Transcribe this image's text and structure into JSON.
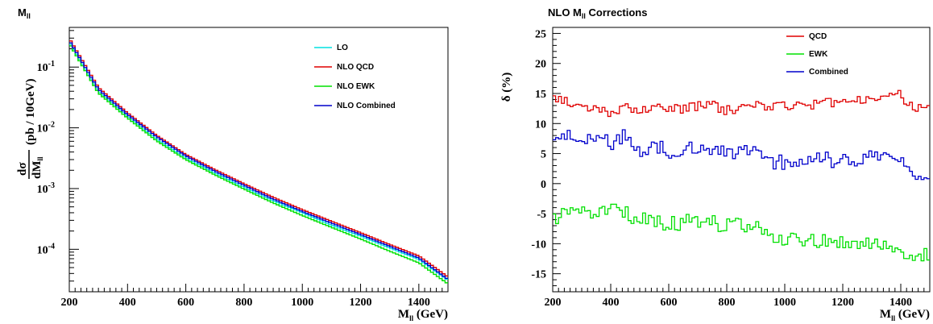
{
  "chart_data": [
    {
      "type": "line",
      "title": "M_ll",
      "title_main": "M",
      "title_sub": "ll",
      "xlabel_main": "M",
      "xlabel_sub": "ll",
      "xlabel_unit": " (GeV)",
      "ylabel_num": "dσ",
      "ylabel_den": "dM",
      "ylabel_den_sub": "ll",
      "ylabel_unit": "(pb / 10GeV)",
      "xlim": [
        200,
        1500
      ],
      "ylim": [
        2e-05,
        0.45
      ],
      "yscale": "log",
      "xticks": [
        "200",
        "400",
        "600",
        "800",
        "1000",
        "1200",
        "1400"
      ],
      "yticks": [
        {
          "value": 0.1,
          "mant": "10",
          "exp": "-1"
        },
        {
          "value": 0.01,
          "mant": "10",
          "exp": "-2"
        },
        {
          "value": 0.001,
          "mant": "10",
          "exp": "-3"
        },
        {
          "value": 0.0001,
          "mant": "10",
          "exp": "-4"
        }
      ],
      "legend_position": "top-right",
      "x": [
        200,
        300,
        400,
        500,
        600,
        700,
        800,
        900,
        1000,
        1100,
        1200,
        1300,
        1400,
        1500
      ],
      "series": [
        {
          "name": "LO",
          "color": "#00e0e0",
          "values": [
            0.26,
            0.04,
            0.0155,
            0.0065,
            0.0032,
            0.0018,
            0.00105,
            0.00063,
            0.0004,
            0.00025,
            0.000165,
            0.000105,
            6.8e-05,
            3.1e-05
          ]
        },
        {
          "name": "NLO QCD",
          "color": "#e00000",
          "values": [
            0.295,
            0.046,
            0.0176,
            0.0075,
            0.00365,
            0.00205,
            0.0012,
            0.00072,
            0.00045,
            0.00029,
            0.000188,
            0.00012,
            7.8e-05,
            3.5e-05
          ]
        },
        {
          "name": "NLO EWK",
          "color": "#00e000",
          "values": [
            0.245,
            0.0375,
            0.0145,
            0.0061,
            0.003,
            0.00168,
            0.00098,
            0.00058,
            0.00036,
            0.00023,
            0.000148,
            9.3e-05,
            6e-05,
            2.7e-05
          ]
        },
        {
          "name": "NLO Combined",
          "color": "#0000cc",
          "values": [
            0.275,
            0.043,
            0.0165,
            0.0071,
            0.00345,
            0.00193,
            0.00113,
            0.00067,
            0.00042,
            0.00027,
            0.000175,
            0.000112,
            7.2e-05,
            3.2e-05
          ]
        }
      ]
    },
    {
      "type": "line",
      "title_main": "NLO M",
      "title_sub": "ll",
      "title_rest": " Corrections",
      "xlabel_main": "M",
      "xlabel_sub": "ll",
      "xlabel_unit": " (GeV)",
      "ylabel": "δ (%)",
      "xlim": [
        200,
        1500
      ],
      "ylim": [
        -18,
        26
      ],
      "xticks": [
        "200",
        "400",
        "600",
        "800",
        "1000",
        "1200",
        "1400"
      ],
      "yticks": [
        "-15",
        "-10",
        "-5",
        "0",
        "5",
        "10",
        "15",
        "20",
        "25"
      ],
      "legend_position": "top-right",
      "x": [
        200,
        250,
        300,
        350,
        400,
        450,
        500,
        550,
        600,
        650,
        700,
        750,
        800,
        850,
        900,
        950,
        1000,
        1050,
        1100,
        1150,
        1200,
        1250,
        1300,
        1350,
        1400,
        1450,
        1500
      ],
      "series": [
        {
          "name": "QCD",
          "color": "#e00000",
          "values": [
            14.5,
            13.5,
            12.8,
            12.6,
            11.5,
            13.2,
            12.0,
            12.8,
            12.2,
            12.5,
            12.9,
            13.0,
            12.2,
            12.6,
            13.5,
            12.8,
            13.0,
            13.3,
            13.2,
            13.5,
            13.8,
            14.0,
            13.8,
            14.5,
            14.8,
            12.0,
            13.5
          ]
        },
        {
          "name": "EWK",
          "color": "#00e000",
          "values": [
            -5.8,
            -5.0,
            -4.6,
            -4.5,
            -4.4,
            -4.9,
            -6.0,
            -6.3,
            -6.8,
            -6.5,
            -6.2,
            -6.6,
            -6.9,
            -6.7,
            -7.0,
            -8.8,
            -9.3,
            -9.0,
            -9.5,
            -9.4,
            -9.8,
            -10.0,
            -9.6,
            -10.0,
            -11.0,
            -12.0,
            -11.5
          ]
        },
        {
          "name": "Combined",
          "color": "#0000cc",
          "values": [
            8.6,
            8.2,
            7.8,
            7.6,
            6.8,
            7.8,
            5.2,
            6.2,
            5.5,
            5.6,
            6.4,
            6.0,
            5.0,
            5.5,
            6.3,
            3.8,
            3.5,
            3.6,
            3.8,
            4.0,
            3.9,
            4.0,
            4.2,
            4.4,
            3.5,
            0.5,
            2.0
          ]
        }
      ]
    }
  ]
}
